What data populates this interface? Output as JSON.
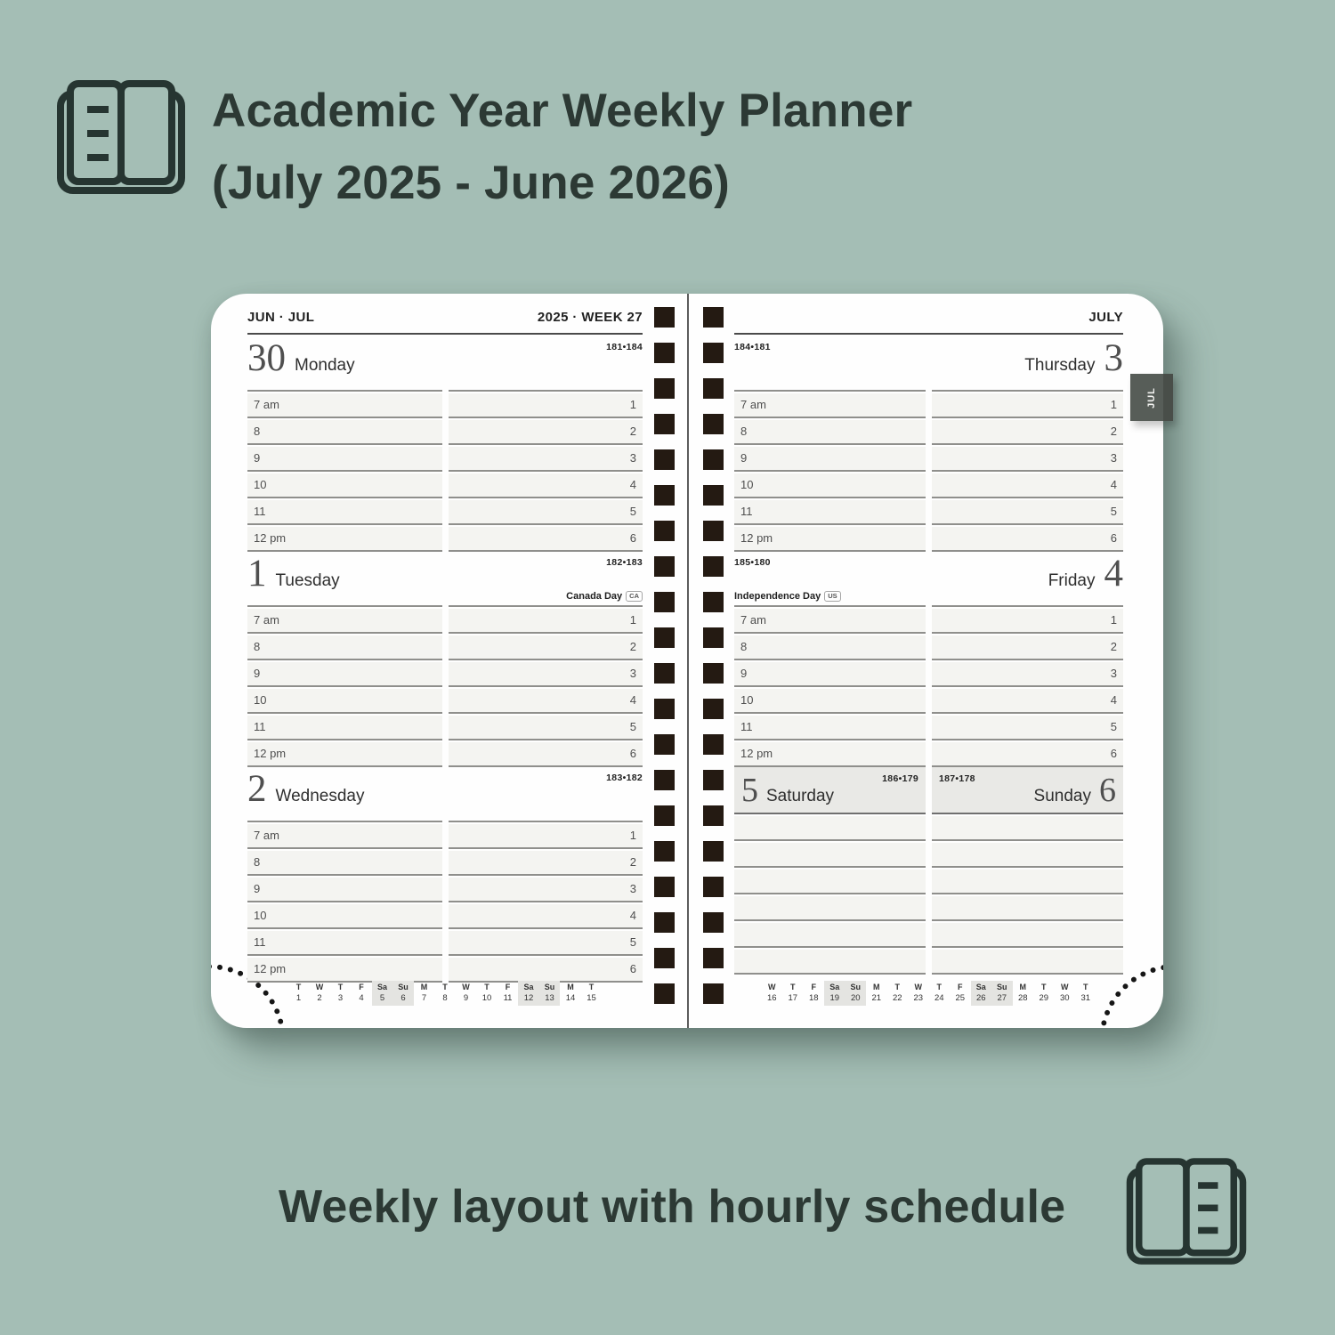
{
  "title": {
    "line1": "Academic Year Weekly Planner",
    "line2": "(July 2025 - June 2026)"
  },
  "caption": {
    "text": "Weekly layout with hourly schedule"
  },
  "icons": {
    "top": "open-book-icon",
    "bottom": "open-book-icon"
  },
  "colors": {
    "background": "#a4beb5",
    "ink": "#2c3934",
    "page": "#fefefe",
    "row_fill": "#f4f4f1",
    "row_line": "#8f8f8c",
    "binding": "#241a12",
    "tab": "#575d58",
    "weekend_header": "#e9e9e6",
    "minical_highlight": "#e4e4e1"
  },
  "planner": {
    "hours": {
      "labels": [
        "7 am",
        "8",
        "9",
        "10",
        "11",
        "12 pm"
      ],
      "numbers": [
        "1",
        "2",
        "3",
        "4",
        "5",
        "6"
      ]
    },
    "left_page": {
      "header_left": "JUN · JUL",
      "header_right": "2025 · WEEK 27",
      "days": [
        {
          "number": "30",
          "name": "Monday",
          "pages": "181•184",
          "holiday": null
        },
        {
          "number": "1",
          "name": "Tuesday",
          "pages": "182•183",
          "holiday": {
            "label": "Canada Day",
            "badge": "CA"
          }
        },
        {
          "number": "2",
          "name": "Wednesday",
          "pages": "183•182",
          "holiday": null
        }
      ],
      "mini_calendar": {
        "weekdays": [
          "T",
          "W",
          "T",
          "F",
          "Sa",
          "Su",
          "M",
          "T",
          "W",
          "T",
          "F",
          "Sa",
          "Su",
          "M",
          "T"
        ],
        "dates": [
          "1",
          "2",
          "3",
          "4",
          "5",
          "6",
          "7",
          "8",
          "9",
          "10",
          "11",
          "12",
          "13",
          "14",
          "15"
        ],
        "weekend_indexes": [
          4,
          5,
          11,
          12
        ]
      }
    },
    "right_page": {
      "month_label": "JULY",
      "tab_label": "JUL",
      "days": [
        {
          "number": "3",
          "name": "Thursday",
          "pages": "184•181",
          "holiday": null
        },
        {
          "number": "4",
          "name": "Friday",
          "pages": "185•180",
          "holiday": {
            "label": "Independence Day",
            "badge": "US"
          }
        }
      ],
      "weekend": {
        "saturday": {
          "number": "5",
          "name": "Saturday",
          "pages": "186•179"
        },
        "sunday": {
          "number": "6",
          "name": "Sunday",
          "pages": "187•178"
        }
      },
      "mini_calendar": {
        "weekdays": [
          "W",
          "T",
          "F",
          "Sa",
          "Su",
          "M",
          "T",
          "W",
          "T",
          "F",
          "Sa",
          "Su",
          "M",
          "T",
          "W",
          "T"
        ],
        "dates": [
          "16",
          "17",
          "18",
          "19",
          "20",
          "21",
          "22",
          "23",
          "24",
          "25",
          "26",
          "27",
          "28",
          "29",
          "30",
          "31"
        ],
        "weekend_indexes": [
          3,
          4,
          10,
          11
        ]
      }
    }
  }
}
